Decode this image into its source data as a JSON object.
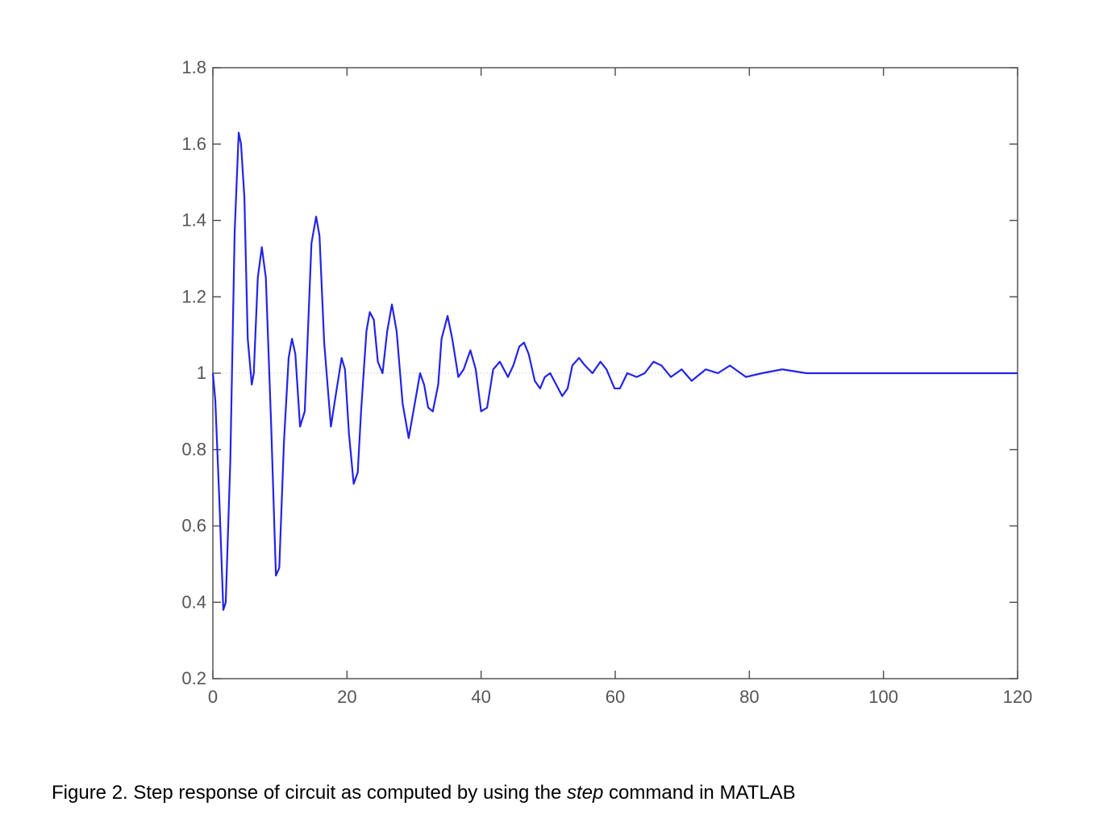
{
  "chart_data": {
    "type": "line",
    "caption": [
      "Figure 2. Step response of circuit as computed by using the ",
      "step",
      " command in MATLAB"
    ],
    "x": [
      0,
      0.36,
      0.96,
      1.56,
      1.92,
      2.6,
      3.25,
      3.85,
      4.2,
      4.7,
      5.2,
      5.8,
      6.1,
      6.7,
      7.3,
      7.9,
      8.7,
      9.4,
      9.9,
      10.6,
      11.3,
      11.8,
      12.3,
      13.0,
      13.7,
      14.7,
      15.4,
      15.9,
      16.6,
      17.6,
      18.3,
      19.2,
      19.7,
      20.3,
      21.0,
      21.6,
      22.1,
      22.9,
      23.4,
      24.0,
      24.6,
      25.3,
      26.0,
      26.7,
      27.4,
      28.3,
      29.2,
      30.1,
      30.9,
      31.5,
      32.1,
      32.8,
      33.6,
      34.1,
      35.0,
      35.7,
      36.6,
      37.4,
      38.4,
      39.2,
      40.0,
      40.9,
      41.8,
      42.8,
      44.0,
      44.8,
      45.7,
      46.4,
      47.1,
      48.0,
      48.8,
      49.5,
      50.3,
      51.2,
      52.1,
      52.9,
      53.6,
      54.6,
      55.5,
      56.6,
      57.8,
      58.7,
      59.9,
      60.7,
      61.8,
      63.2,
      64.4,
      65.7,
      66.9,
      68.3,
      69.9,
      71.4,
      73.5,
      75.3,
      77.1,
      79.5,
      81.9,
      84.9,
      88.5,
      93.3,
      100.5,
      120
    ],
    "series": [
      {
        "color": "#2323e8",
        "values": [
          1.0,
          0.93,
          0.67,
          0.38,
          0.4,
          0.77,
          1.37,
          1.63,
          1.6,
          1.46,
          1.09,
          0.97,
          1.0,
          1.25,
          1.33,
          1.25,
          0.86,
          0.47,
          0.49,
          0.82,
          1.04,
          1.09,
          1.05,
          0.86,
          0.9,
          1.34,
          1.41,
          1.36,
          1.08,
          0.86,
          0.94,
          1.04,
          1.01,
          0.84,
          0.71,
          0.74,
          0.9,
          1.11,
          1.16,
          1.14,
          1.03,
          1.0,
          1.11,
          1.18,
          1.11,
          0.92,
          0.83,
          0.92,
          1.0,
          0.97,
          0.91,
          0.9,
          0.97,
          1.09,
          1.15,
          1.09,
          0.99,
          1.01,
          1.06,
          1.01,
          0.9,
          0.91,
          1.01,
          1.03,
          0.99,
          1.02,
          1.07,
          1.08,
          1.05,
          0.98,
          0.96,
          0.99,
          1.0,
          0.97,
          0.94,
          0.96,
          1.02,
          1.04,
          1.02,
          1.0,
          1.03,
          1.01,
          0.96,
          0.96,
          1.0,
          0.99,
          1.0,
          1.03,
          1.02,
          0.99,
          1.01,
          0.98,
          1.01,
          1.0,
          1.02,
          0.99,
          1.0,
          1.01,
          1.0,
          1.0,
          1.0,
          1.0
        ]
      }
    ],
    "xlim": [
      0,
      120
    ],
    "xticks": [
      0,
      20,
      40,
      60,
      80,
      100,
      120
    ],
    "ylim": [
      0.2,
      1.8
    ],
    "yticks": [
      0.2,
      0.4,
      0.6,
      0.8,
      1,
      1.2,
      1.4,
      1.6,
      1.8
    ],
    "hline": 1
  }
}
